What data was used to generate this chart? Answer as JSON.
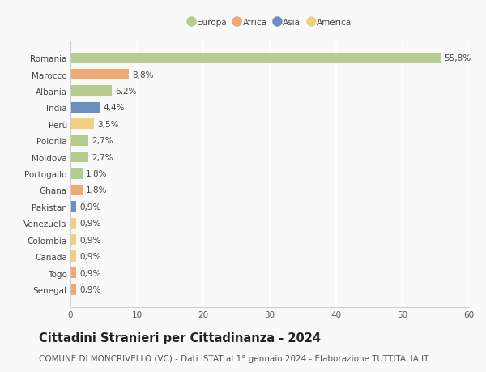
{
  "countries": [
    "Romania",
    "Marocco",
    "Albania",
    "India",
    "Perù",
    "Polonia",
    "Moldova",
    "Portogallo",
    "Ghana",
    "Pakistan",
    "Venezuela",
    "Colombia",
    "Canada",
    "Togo",
    "Senegal"
  ],
  "values": [
    55.8,
    8.8,
    6.2,
    4.4,
    3.5,
    2.7,
    2.7,
    1.8,
    1.8,
    0.9,
    0.9,
    0.9,
    0.9,
    0.9,
    0.9
  ],
  "labels": [
    "55,8%",
    "8,8%",
    "6,2%",
    "4,4%",
    "3,5%",
    "2,7%",
    "2,7%",
    "1,8%",
    "1,8%",
    "0,9%",
    "0,9%",
    "0,9%",
    "0,9%",
    "0,9%",
    "0,9%"
  ],
  "continents": [
    "Europa",
    "Africa",
    "Europa",
    "Asia",
    "America",
    "Europa",
    "Europa",
    "Europa",
    "Africa",
    "Asia",
    "America",
    "America",
    "America",
    "Africa",
    "Africa"
  ],
  "continent_colors": {
    "Europa": "#b5cc8e",
    "Africa": "#f0a875",
    "Asia": "#6b8fbf",
    "America": "#f0d080"
  },
  "legend_order": [
    "Europa",
    "Africa",
    "Asia",
    "America"
  ],
  "xlim": [
    0,
    60
  ],
  "xticks": [
    0,
    10,
    20,
    30,
    40,
    50,
    60
  ],
  "title": "Cittadini Stranieri per Cittadinanza - 2024",
  "subtitle": "COMUNE DI MONCRIVELLO (VC) - Dati ISTAT al 1° gennaio 2024 - Elaborazione TUTTITALIA.IT",
  "background_color": "#f9f9f9",
  "grid_color": "#ffffff",
  "bar_height": 0.65,
  "title_fontsize": 10.5,
  "subtitle_fontsize": 7.5,
  "label_fontsize": 7.5,
  "tick_fontsize": 7.5
}
